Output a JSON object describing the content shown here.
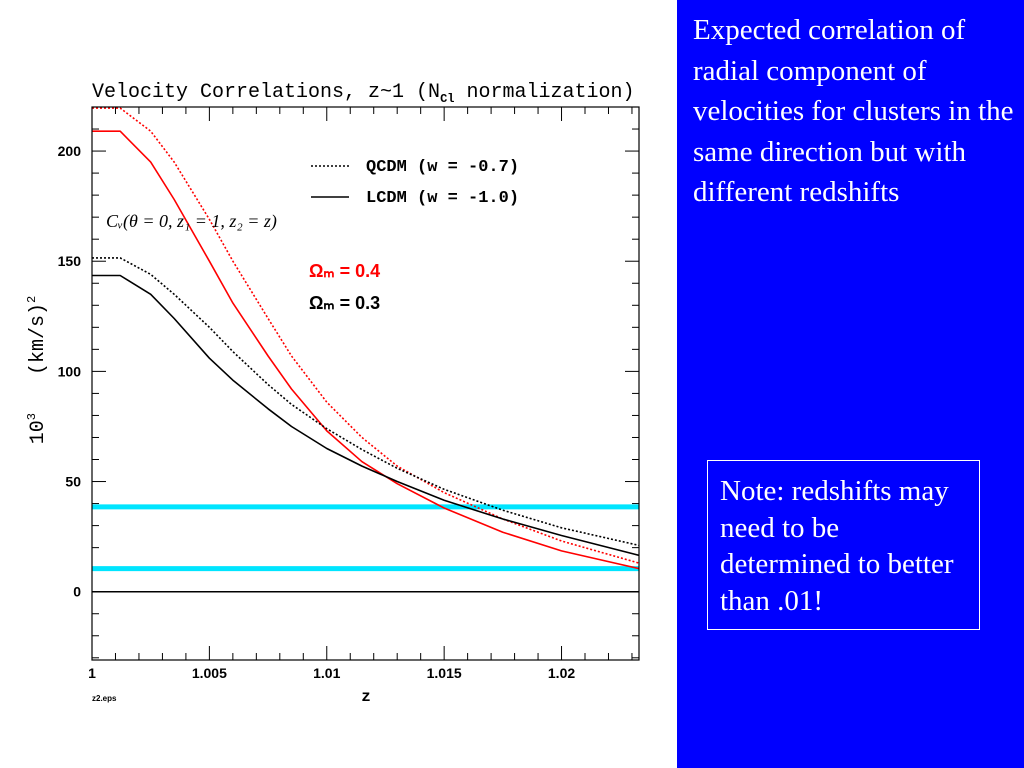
{
  "chart_data": {
    "type": "line",
    "title": "Velocity Correlations, z~1 (N",
    "title_subscript": "Cl",
    "title_suffix": " normalization)",
    "xlabel": "z",
    "ylabel_prefix": "10",
    "ylabel_prefix_sup": "3",
    "ylabel_main": "(km/s)",
    "ylabel_main_sup": "2",
    "file_label": "z2.eps",
    "xlim": [
      1.0,
      1.0233
    ],
    "ylim": [
      -31,
      220
    ],
    "x_ticks": [
      {
        "value": 1.0,
        "label": "1"
      },
      {
        "value": 1.005,
        "label": "1.005"
      },
      {
        "value": 1.01,
        "label": "1.01"
      },
      {
        "value": 1.015,
        "label": "1.015"
      },
      {
        "value": 1.02,
        "label": "1.02"
      }
    ],
    "y_ticks": [
      {
        "value": 0,
        "label": "0"
      },
      {
        "value": 50,
        "label": "50"
      },
      {
        "value": 100,
        "label": "100"
      },
      {
        "value": 150,
        "label": "150"
      },
      {
        "value": 200,
        "label": "200"
      }
    ],
    "legend": [
      {
        "style": "dotted",
        "label": "QCDM (w = -0.7)"
      },
      {
        "style": "solid",
        "label": "LCDM (w = -1.0)"
      }
    ],
    "formula_annotation": "Cᵥ(θ = 0, z₁ = 1, z₂ = z)",
    "omega_annotations": [
      {
        "label": "Ωₘ = 0.4",
        "color": "#ff0000"
      },
      {
        "label": "Ωₘ = 0.3",
        "color": "#000000"
      }
    ],
    "grid": false,
    "series": [
      {
        "line_style": "dotted",
        "color": "#ff0000",
        "x": [
          1.0,
          1.0012,
          1.0025,
          1.0035,
          1.005,
          1.006,
          1.0075,
          1.0085,
          1.01,
          1.0115,
          1.013,
          1.015,
          1.0175,
          1.02,
          1.0233
        ],
        "y": [
          219.5,
          219.5,
          209,
          195,
          169,
          150,
          124,
          107,
          86,
          70,
          57,
          45,
          33,
          23,
          13
        ]
      },
      {
        "line_style": "solid",
        "color": "#ff0000",
        "x": [
          1.0,
          1.0012,
          1.0025,
          1.0035,
          1.005,
          1.006,
          1.0075,
          1.0085,
          1.01,
          1.0115,
          1.013,
          1.015,
          1.0175,
          1.02,
          1.0233
        ],
        "y": [
          209,
          209,
          195,
          178,
          150,
          131,
          107,
          92,
          73,
          59,
          49,
          38,
          27,
          18.5,
          10.5
        ]
      },
      {
        "line_style": "dotted",
        "color": "#000000",
        "x": [
          1.0,
          1.0012,
          1.0025,
          1.0035,
          1.005,
          1.006,
          1.0075,
          1.0085,
          1.01,
          1.0115,
          1.013,
          1.015,
          1.0175,
          1.02,
          1.0233
        ],
        "y": [
          151.5,
          151.5,
          144,
          135,
          120,
          109,
          94,
          85,
          74,
          64.5,
          56,
          46.5,
          37,
          29,
          21
        ]
      },
      {
        "line_style": "solid",
        "color": "#000000",
        "x": [
          1.0,
          1.0012,
          1.0025,
          1.0035,
          1.005,
          1.006,
          1.0075,
          1.0085,
          1.01,
          1.0115,
          1.013,
          1.015,
          1.0175,
          1.02,
          1.0233
        ],
        "y": [
          143.5,
          143.5,
          135,
          124,
          106,
          96,
          83,
          75,
          65,
          57,
          50,
          41.5,
          33,
          25.5,
          16.5
        ]
      }
    ],
    "horizontal_lines": [
      {
        "y": 38.5,
        "color": "#00e5ff"
      },
      {
        "y": 10.5,
        "color": "#00e5ff"
      },
      {
        "y": 0,
        "color": "#000000"
      }
    ]
  },
  "side_text": "Expected correlation of radial component of velocities for clusters in the same direction but with different redshifts",
  "note_text": "Note:  redshifts may need to be determined to better than .01!",
  "colors": {
    "panel_background": "#0000ff",
    "panel_text": "#ffffff",
    "reference_lines": "#00e5ff"
  }
}
